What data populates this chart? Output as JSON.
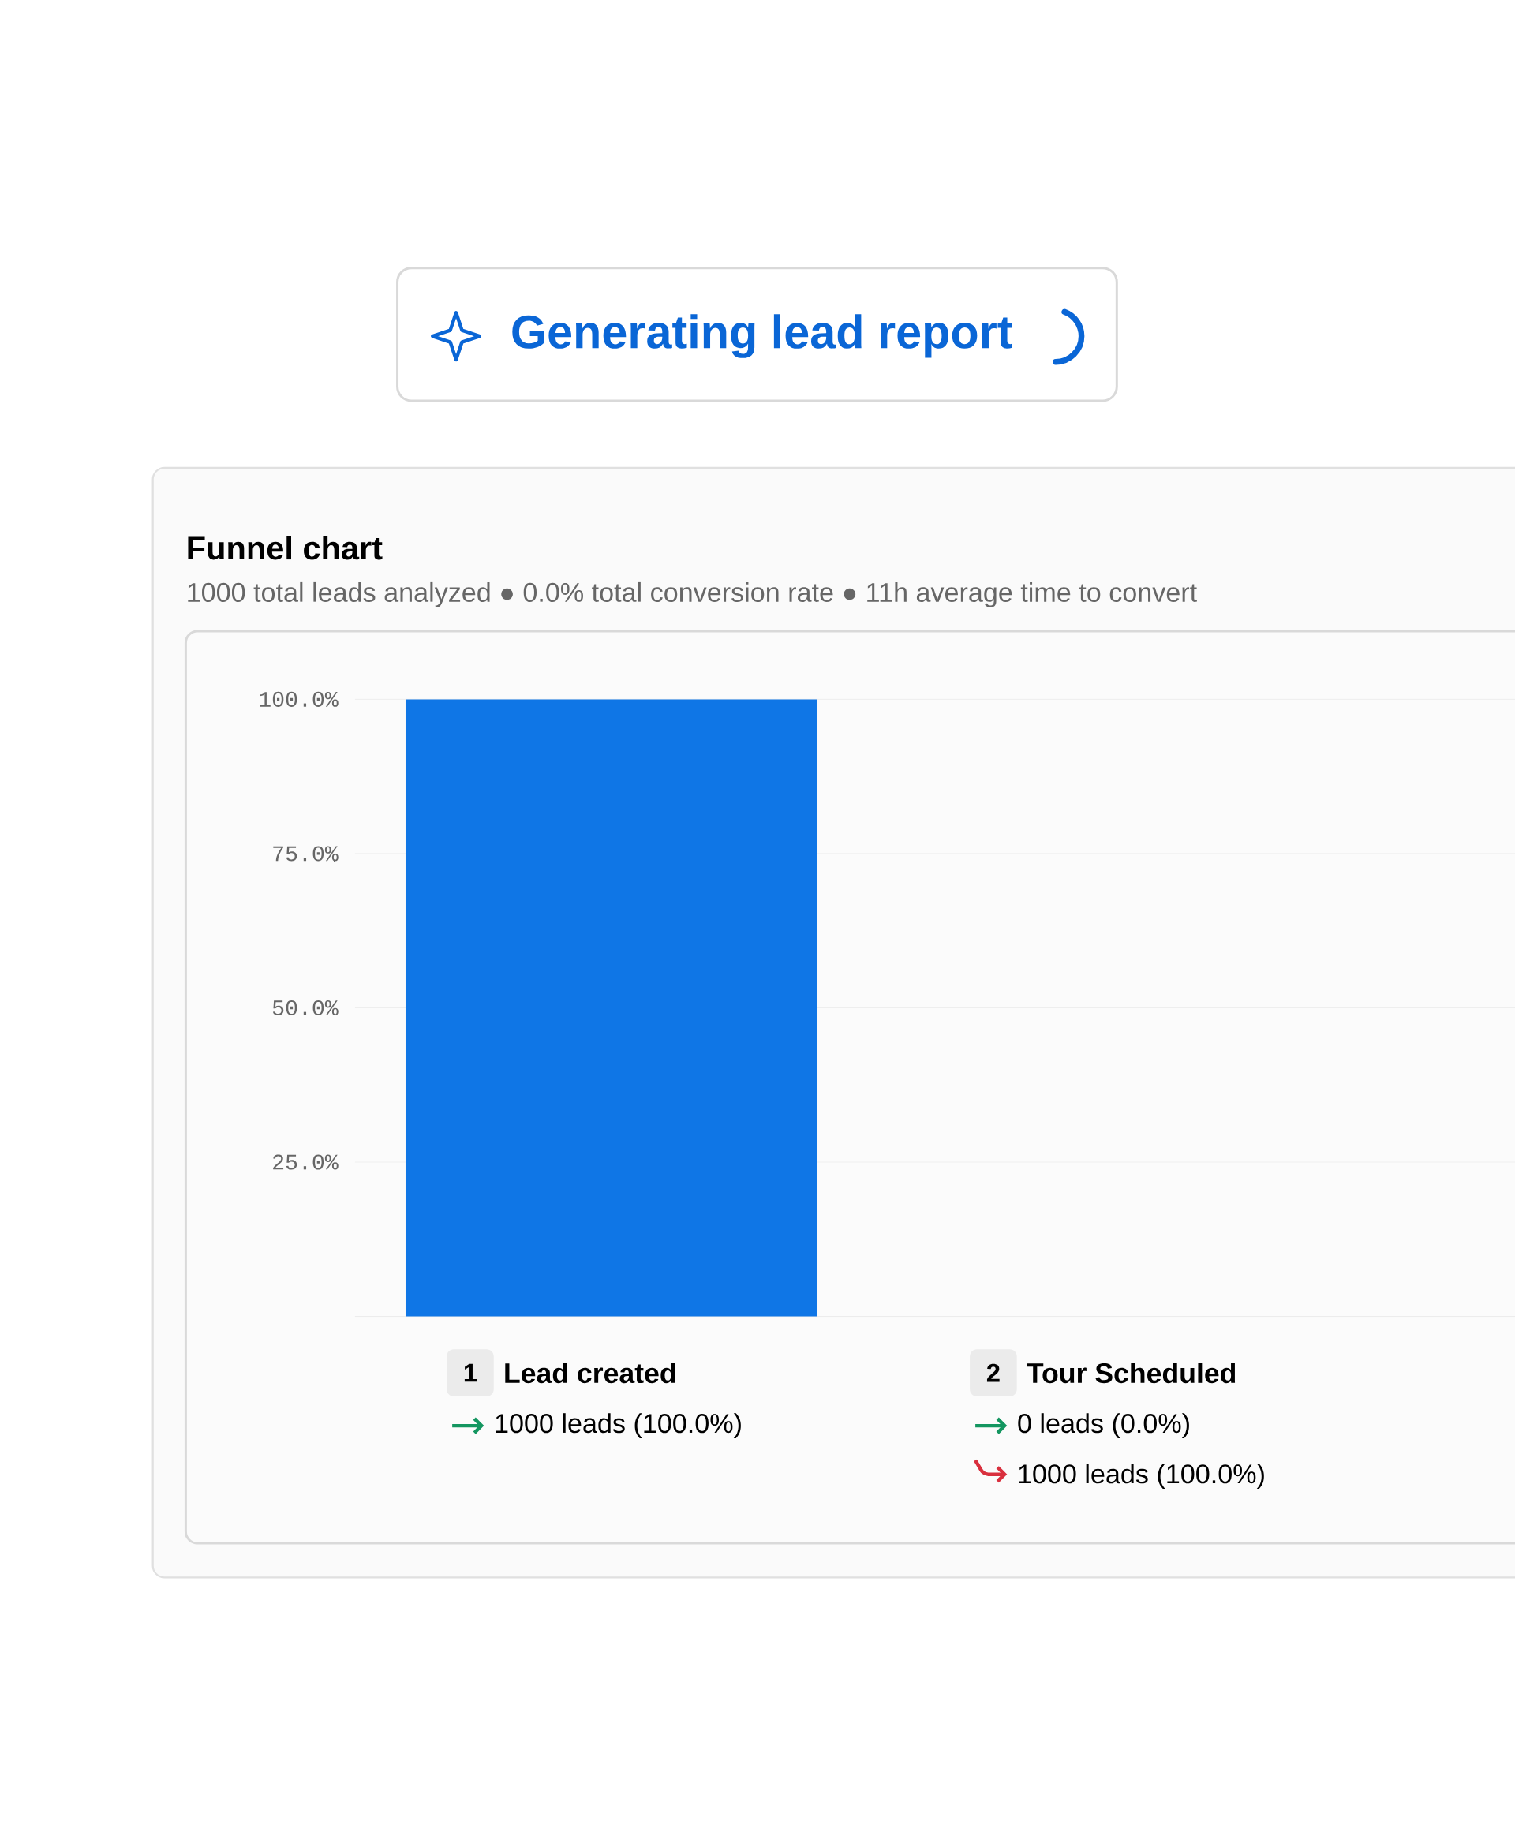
{
  "chart_data": {
    "type": "bar",
    "title": "Funnel chart",
    "subtitle": "1000 total leads analyzed ● 0.0% total conversion rate ● 11h average time to convert",
    "categories": [
      "Lead created",
      "Tour Scheduled"
    ],
    "values": [
      100,
      0
    ],
    "value_labels": [
      "1000 leads (100.0%)",
      "0 leads (0.0%)"
    ],
    "color": "#0f76e6",
    "ylim": [
      0,
      100
    ],
    "yticks": [
      {
        "value": 25,
        "label": "25.0%"
      },
      {
        "value": 50,
        "label": "50.0%"
      },
      {
        "value": 75,
        "label": "75.0%"
      },
      {
        "value": 100,
        "label": "100.0%"
      }
    ],
    "grid": "y",
    "annotations": [
      "Generating lead report",
      "1",
      "2",
      "1000 leads (100.0%)"
    ]
  }
}
